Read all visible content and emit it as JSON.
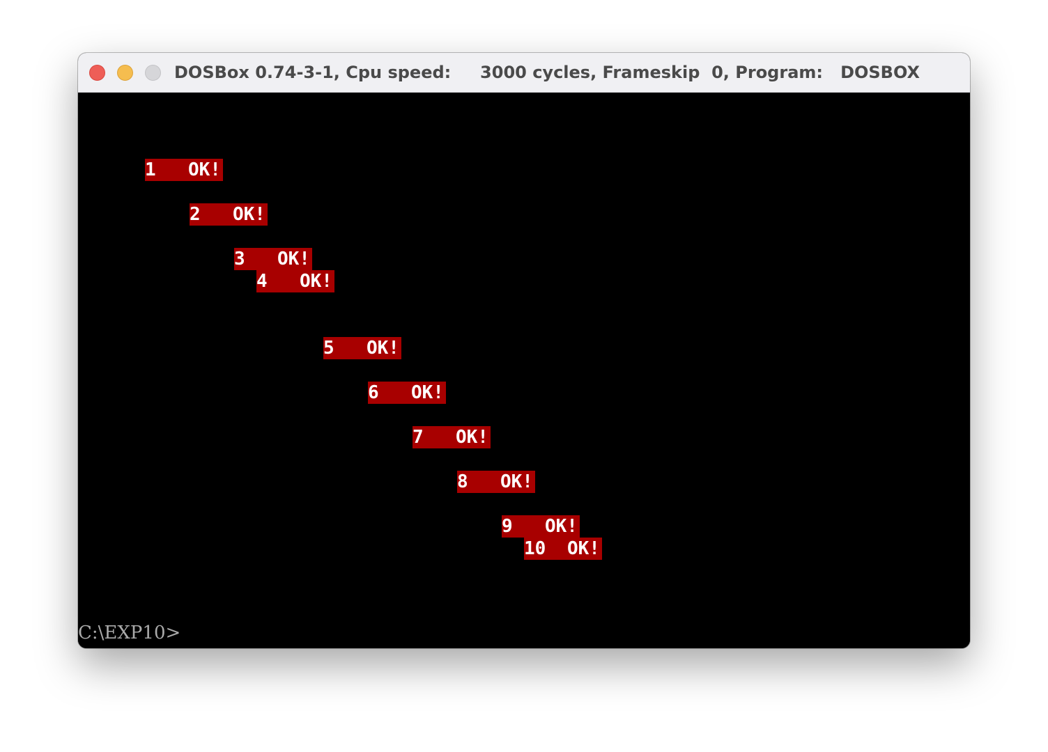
{
  "window": {
    "title": "DOSBox 0.74-3-1, Cpu speed:     3000 cycles, Frameskip  0, Program:   DOSBOX"
  },
  "colors": {
    "titlebar_bg": "#f0f0f3",
    "screen_bg": "#000000",
    "highlight_bg": "#a80000",
    "highlight_fg": "#ffffff",
    "prompt_fg": "#aaaaaa"
  },
  "screen": {
    "lines": [
      {
        "num": "1",
        "text": "OK!"
      },
      {
        "num": "2",
        "text": "OK!"
      },
      {
        "num": "3",
        "text": "OK!"
      },
      {
        "num": "4",
        "text": "OK!"
      },
      {
        "num": "5",
        "text": "OK!"
      },
      {
        "num": "6",
        "text": "OK!"
      },
      {
        "num": "7",
        "text": "OK!"
      },
      {
        "num": "8",
        "text": "OK!"
      },
      {
        "num": "9",
        "text": "OK!"
      },
      {
        "num": "10",
        "text": "OK!"
      }
    ],
    "prompt": "C:\\EXP10>"
  }
}
